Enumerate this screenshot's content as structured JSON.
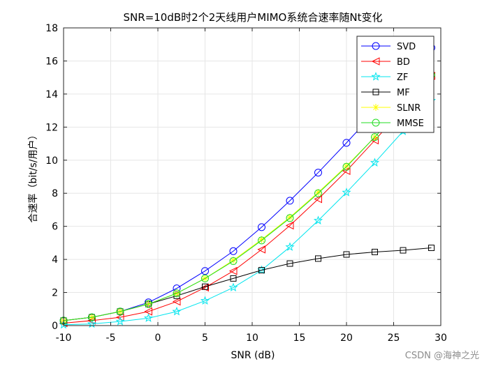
{
  "chart_data": {
    "type": "line",
    "title": "SNR=10dB时2个2天线用户MIMO系统合速率随Nt变化",
    "xlabel": "SNR (dB)",
    "ylabel": "合速率（bit/s/用户）",
    "xlim": [
      -10,
      30
    ],
    "ylim": [
      0,
      18
    ],
    "xticks": [
      "-10",
      "-5",
      "0",
      "5",
      "10",
      "15",
      "20",
      "25",
      "30"
    ],
    "yticks": [
      "0",
      "2",
      "4",
      "6",
      "8",
      "10",
      "12",
      "14",
      "16",
      "18"
    ],
    "grid": true,
    "legend_position": "top-right",
    "x": [
      -10,
      -7,
      -4,
      -1,
      2,
      5,
      8,
      11,
      14,
      17,
      20,
      23,
      26,
      29
    ],
    "series": [
      {
        "name": "SVD",
        "color": "#0000ff",
        "marker": "circle",
        "values": [
          0.3,
          0.5,
          0.85,
          1.4,
          2.25,
          3.3,
          4.5,
          5.95,
          7.55,
          9.25,
          11.05,
          12.9,
          14.85,
          16.8
        ]
      },
      {
        "name": "BD",
        "color": "#ff0000",
        "marker": "triangle-left",
        "values": [
          0.15,
          0.3,
          0.5,
          0.85,
          1.45,
          2.3,
          3.3,
          4.6,
          6.05,
          7.65,
          9.35,
          11.2,
          13.1,
          15.1
        ]
      },
      {
        "name": "ZF",
        "color": "#00e5ee",
        "marker": "pentagram",
        "values": [
          0.05,
          0.1,
          0.25,
          0.45,
          0.85,
          1.5,
          2.3,
          3.35,
          4.75,
          6.35,
          8.05,
          9.85,
          11.75,
          13.6
        ]
      },
      {
        "name": "MF",
        "color": "#000000",
        "marker": "square",
        "values": [
          0.3,
          0.5,
          0.85,
          1.3,
          1.8,
          2.35,
          2.85,
          3.35,
          3.75,
          4.05,
          4.3,
          4.45,
          4.55,
          4.7
        ]
      },
      {
        "name": "SLNR",
        "color": "#ffff00",
        "marker": "asterisk",
        "values": [
          0.3,
          0.5,
          0.85,
          1.3,
          1.95,
          2.85,
          3.95,
          5.2,
          6.55,
          8.05,
          9.65,
          11.4,
          13.25,
          15.2
        ]
      },
      {
        "name": "MMSE",
        "color": "#22dd22",
        "marker": "circle",
        "values": [
          0.3,
          0.5,
          0.85,
          1.3,
          1.95,
          2.85,
          3.9,
          5.15,
          6.5,
          8.0,
          9.6,
          11.4,
          13.25,
          15.15
        ]
      }
    ]
  },
  "watermark": "CSDN @海神之光"
}
